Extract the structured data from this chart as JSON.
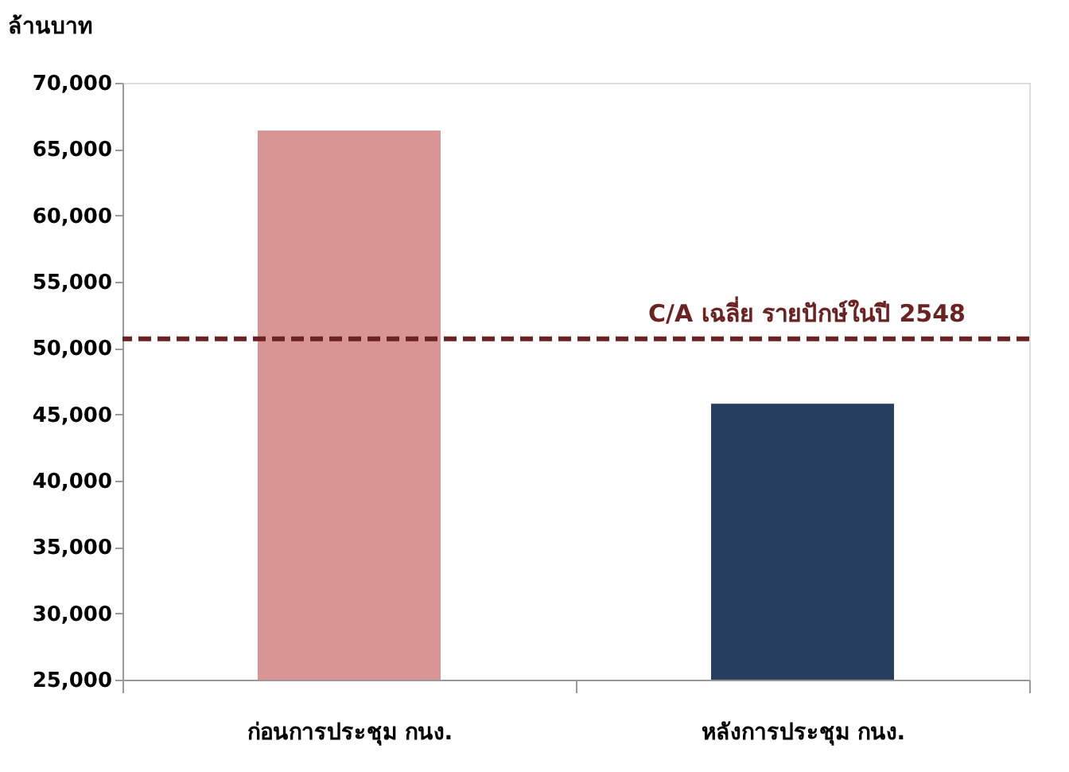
{
  "chart_data": {
    "type": "bar",
    "ylabel": "ล้านบาท",
    "categories": [
      "ก่อนการประชุม กนง.",
      "หลังการประชุม กนง."
    ],
    "values": [
      66400,
      45800
    ],
    "colors": [
      "#d99494",
      "#263f5e"
    ],
    "ylim": [
      25000,
      70000
    ],
    "yticks": [
      {
        "value": 25000,
        "label": "25,000"
      },
      {
        "value": 30000,
        "label": "30,000"
      },
      {
        "value": 35000,
        "label": "35,000"
      },
      {
        "value": 40000,
        "label": "40,000"
      },
      {
        "value": 45000,
        "label": "45,000"
      },
      {
        "value": 50000,
        "label": "50,000"
      },
      {
        "value": 55000,
        "label": "55,000"
      },
      {
        "value": 60000,
        "label": "60,000"
      },
      {
        "value": 65000,
        "label": "65,000"
      },
      {
        "value": 70000,
        "label": "70,000"
      }
    ],
    "ref_lines": [
      {
        "axis": "y",
        "value": 50700,
        "label": "C/A เฉลี่ย รายปักษ์ในปี 2548",
        "color": "#6b2222",
        "line_style": "dashed"
      }
    ],
    "grid": false
  }
}
